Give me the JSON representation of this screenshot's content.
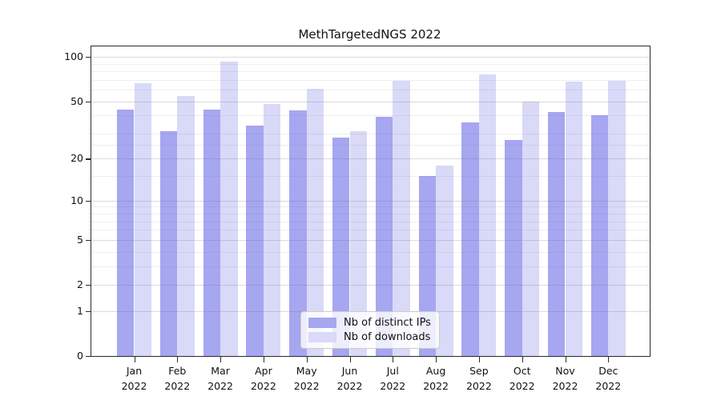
{
  "title": "MethTargetedNGS 2022",
  "colors": {
    "ips_bar": "#a6a6f1",
    "downloads_bar": "#d9d9f8",
    "spine": "#2b2b2b",
    "text": "#111111"
  },
  "legend": {
    "items": [
      {
        "label": "Nb of distinct IPs",
        "series_key": "ips"
      },
      {
        "label": "Nb of downloads",
        "series_key": "downloads"
      }
    ],
    "position": "lower center"
  },
  "chart_data": {
    "type": "bar",
    "title": "MethTargetedNGS 2022",
    "xlabel": "",
    "ylabel": "",
    "yscale": "log1p",
    "categories": [
      "Jan",
      "Feb",
      "Mar",
      "Apr",
      "May",
      "Jun",
      "Jul",
      "Aug",
      "Sep",
      "Oct",
      "Nov",
      "Dec"
    ],
    "year": "2022",
    "series": [
      {
        "name": "Nb of distinct IPs",
        "color": "#a6a6f1",
        "values": [
          44,
          31,
          44,
          34,
          43,
          28,
          39,
          15,
          36,
          27,
          42,
          40
        ]
      },
      {
        "name": "Nb of downloads",
        "color": "#d9d9f8",
        "values": [
          66,
          54,
          93,
          48,
          61,
          31,
          69,
          18,
          76,
          50,
          68,
          69
        ]
      }
    ],
    "y_ticks": [
      0,
      1,
      2,
      5,
      10,
      20,
      50,
      100
    ],
    "y_minor_gridlines": [
      3,
      4,
      6,
      7,
      8,
      9,
      15,
      25,
      30,
      40,
      60,
      70,
      80,
      90
    ],
    "ylim": [
      0,
      118
    ],
    "grid": true,
    "grid_over_bars": true,
    "legend_position": "lower center"
  }
}
